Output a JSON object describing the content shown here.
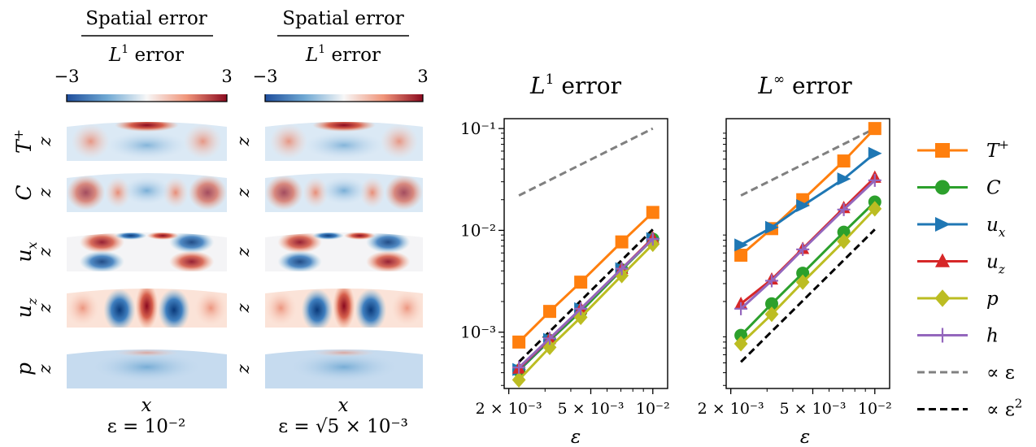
{
  "columns": [
    {
      "header_top": "Spatial error",
      "header_bottom_sym": "L",
      "header_bottom_sup": "1",
      "header_bottom_rest": " error",
      "cbar_min": "−3",
      "cbar_max": "3",
      "xlabel": "x",
      "caption": "ε = 10⁻²"
    },
    {
      "header_top": "Spatial error",
      "header_bottom_sym": "L",
      "header_bottom_sup": "1",
      "header_bottom_rest": " error",
      "cbar_min": "−3",
      "cbar_max": "3",
      "xlabel": "x",
      "caption": "ε = √5 × 10⁻³"
    }
  ],
  "fields": [
    {
      "label": "T",
      "sup": "+",
      "sub": "",
      "zlabel": "z"
    },
    {
      "label": "C",
      "sup": "",
      "sub": "",
      "zlabel": "z"
    },
    {
      "label": "u",
      "sup": "",
      "sub": "x",
      "zlabel": "z"
    },
    {
      "label": "u",
      "sup": "",
      "sub": "z",
      "zlabel": "z"
    },
    {
      "label": "p",
      "sup": "",
      "sub": "",
      "zlabel": "z"
    }
  ],
  "colors": {
    "cbar_low": "#1f4e9c",
    "cbar_mid": "#f7f7f7",
    "cbar_high": "#8b0a1f",
    "T": "#ff7f0e",
    "C": "#2ca02c",
    "ux": "#1f77b4",
    "uz": "#d62728",
    "p": "#bcbd22",
    "h": "#9467bd",
    "ref1": "#808080",
    "ref2": "#000000"
  },
  "chart_data": [
    {
      "type": "line",
      "title_sym": "L",
      "title_sup": "1",
      "title_rest": " error",
      "xlabel": "ε",
      "ylabel": "",
      "xscale": "log",
      "yscale": "log",
      "xlim": [
        0.0019,
        0.0118
      ],
      "ylim": [
        0.00028,
        0.125
      ],
      "xticks": [
        0.002,
        0.005,
        0.01
      ],
      "xtick_labels": [
        "2 × 10⁻³",
        "5 × 10⁻³",
        "10⁻²"
      ],
      "yticks": [
        0.001,
        0.01,
        0.1
      ],
      "ytick_labels": [
        "10⁻³",
        "10⁻²",
        "10⁻¹"
      ],
      "x": [
        0.00224,
        0.00316,
        0.00447,
        0.00707,
        0.01
      ],
      "series": [
        {
          "name": "T+",
          "color": "#ff7f0e",
          "marker": "square",
          "values": [
            0.0008,
            0.0016,
            0.0031,
            0.0077,
            0.015
          ]
        },
        {
          "name": "C",
          "color": "#2ca02c",
          "marker": "circle",
          "values": [
            0.00042,
            0.00083,
            0.0016,
            0.0041,
            0.0082
          ]
        },
        {
          "name": "u_x",
          "color": "#1f77b4",
          "marker": "triangle-right",
          "values": [
            0.00043,
            0.00085,
            0.0017,
            0.0042,
            0.0083
          ]
        },
        {
          "name": "u_z",
          "color": "#d62728",
          "marker": "triangle-up",
          "values": [
            0.00044,
            0.00086,
            0.0017,
            0.0042,
            0.0084
          ]
        },
        {
          "name": "p",
          "color": "#bcbd22",
          "marker": "diamond",
          "values": [
            0.00034,
            0.00071,
            0.0014,
            0.0036,
            0.0073
          ]
        },
        {
          "name": "h",
          "color": "#9467bd",
          "marker": "plus",
          "values": [
            0.00045,
            0.00087,
            0.0017,
            0.0042,
            0.0082
          ]
        }
      ],
      "refs": [
        {
          "name": "∝ ε",
          "color": "#808080",
          "x": [
            0.00224,
            0.01
          ],
          "values": [
            0.022,
            0.1
          ]
        },
        {
          "name": "∝ ε²",
          "color": "#000000",
          "x": [
            0.00224,
            0.01
          ],
          "values": [
            0.00051,
            0.0102
          ]
        }
      ]
    },
    {
      "type": "line",
      "title_sym": "L",
      "title_sup": "∞",
      "title_rest": " error",
      "xlabel": "ε",
      "ylabel": "",
      "xscale": "log",
      "yscale": "log",
      "xlim": [
        0.0019,
        0.0118
      ],
      "ylim": [
        0.00028,
        0.125
      ],
      "xticks": [
        0.002,
        0.005,
        0.01
      ],
      "xtick_labels": [
        "2 × 10⁻³",
        "5 × 10⁻³",
        "10⁻²"
      ],
      "yticks": [],
      "ytick_labels": [],
      "x": [
        0.00224,
        0.00316,
        0.00447,
        0.00707,
        0.01
      ],
      "series": [
        {
          "name": "T+",
          "color": "#ff7f0e",
          "marker": "square",
          "values": [
            0.0057,
            0.0104,
            0.02,
            0.048,
            0.1
          ]
        },
        {
          "name": "C",
          "color": "#2ca02c",
          "marker": "circle",
          "values": [
            0.00093,
            0.0019,
            0.0038,
            0.0096,
            0.019
          ]
        },
        {
          "name": "u_x",
          "color": "#1f77b4",
          "marker": "triangle-right",
          "values": [
            0.0072,
            0.0107,
            0.0175,
            0.032,
            0.057
          ]
        },
        {
          "name": "u_z",
          "color": "#d62728",
          "marker": "triangle-up",
          "values": [
            0.0019,
            0.0033,
            0.0066,
            0.0166,
            0.033
          ]
        },
        {
          "name": "p",
          "color": "#bcbd22",
          "marker": "diamond",
          "values": [
            0.00077,
            0.0015,
            0.0031,
            0.0078,
            0.0163
          ]
        },
        {
          "name": "h",
          "color": "#9467bd",
          "marker": "plus",
          "values": [
            0.0017,
            0.0032,
            0.0065,
            0.016,
            0.031
          ]
        }
      ],
      "refs": [
        {
          "name": "∝ ε",
          "color": "#808080",
          "x": [
            0.00224,
            0.01
          ],
          "values": [
            0.022,
            0.1
          ]
        },
        {
          "name": "∝ ε²",
          "color": "#000000",
          "x": [
            0.00224,
            0.01
          ],
          "values": [
            0.00051,
            0.0102
          ]
        }
      ]
    }
  ],
  "legend": [
    {
      "label": "T",
      "sup": "+",
      "sub": "",
      "color": "#ff7f0e",
      "marker": "square",
      "dash": false
    },
    {
      "label": "C",
      "sup": "",
      "sub": "",
      "color": "#2ca02c",
      "marker": "circle",
      "dash": false
    },
    {
      "label": "u",
      "sup": "",
      "sub": "x",
      "color": "#1f77b4",
      "marker": "triangle-right",
      "dash": false
    },
    {
      "label": "u",
      "sup": "",
      "sub": "z",
      "color": "#d62728",
      "marker": "triangle-up",
      "dash": false
    },
    {
      "label": "p",
      "sup": "",
      "sub": "",
      "color": "#bcbd22",
      "marker": "diamond",
      "dash": false
    },
    {
      "label": "h",
      "sup": "",
      "sub": "",
      "color": "#9467bd",
      "marker": "plus",
      "dash": false
    },
    {
      "label": "∝ ε",
      "sup": "",
      "sub": "",
      "color": "#808080",
      "marker": "none",
      "dash": true
    },
    {
      "label": "∝ ε",
      "sup": "2",
      "sub": "",
      "color": "#000000",
      "marker": "none",
      "dash": true
    }
  ]
}
